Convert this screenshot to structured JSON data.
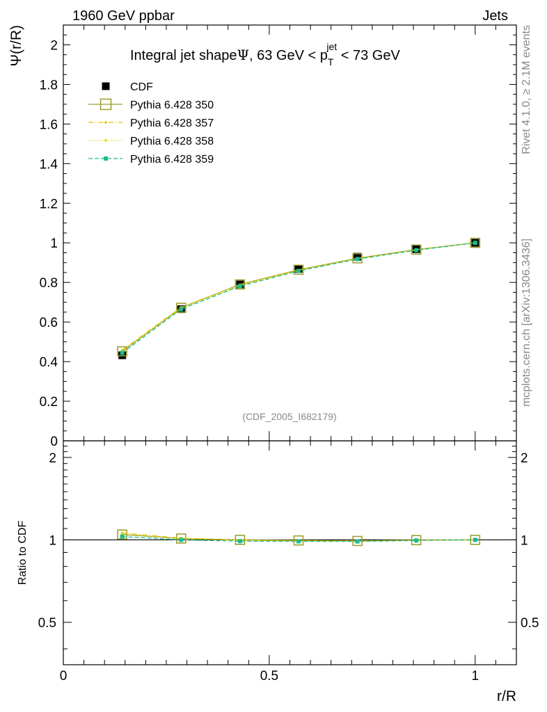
{
  "header": {
    "left_label": "1960 GeV ppbar",
    "right_label": "Jets"
  },
  "side_labels": {
    "rivet": "Rivet 4.1.0, ≥ 2.1M events",
    "mcplots": "mcplots.cern.ch [arXiv:1306.3436]"
  },
  "watermark": "(CDF_2005_I682179)",
  "chart_data": [
    {
      "type": "line",
      "title_parts": {
        "prefix": "Integral jet shape",
        "psi": "Ψ",
        "mid": ", 63 GeV < p",
        "sub": "T",
        "sup": "jet",
        "suffix": " < 73 GeV"
      },
      "ylabel": "Ψ(r/R)",
      "xlim": [
        0,
        1.1
      ],
      "ylim": [
        0,
        2.1
      ],
      "y_ticks": [
        "0",
        "0.2",
        "0.4",
        "0.6",
        "0.8",
        "1",
        "1.2",
        "1.4",
        "1.6",
        "1.8",
        "2"
      ],
      "x": [
        0.143,
        0.286,
        0.429,
        0.571,
        0.714,
        0.857,
        1.0
      ],
      "series": [
        {
          "name": "CDF",
          "color": "#000000",
          "marker": "filled-square",
          "values": [
            0.432,
            0.665,
            0.79,
            0.868,
            0.93,
            0.968,
            1.0
          ]
        },
        {
          "name": "Pythia 6.428 350",
          "color": "#9a9a2a",
          "marker": "open-square",
          "dash": "solid",
          "values": [
            0.452,
            0.672,
            0.79,
            0.864,
            0.922,
            0.966,
            1.0
          ]
        },
        {
          "name": "Pythia 6.428 357",
          "color": "#e8c000",
          "marker": "small-dot",
          "dash": "dashdot",
          "values": [
            0.458,
            0.675,
            0.788,
            0.862,
            0.921,
            0.965,
            1.0
          ]
        },
        {
          "name": "Pythia 6.428 358",
          "color": "#d4d400",
          "marker": "small-dot",
          "dash": "dotted",
          "values": [
            0.454,
            0.672,
            0.786,
            0.861,
            0.92,
            0.965,
            1.0
          ]
        },
        {
          "name": "Pythia 6.428 359",
          "color": "#1abc8c",
          "marker": "filled-square-small",
          "dash": "dashed",
          "values": [
            0.444,
            0.665,
            0.781,
            0.858,
            0.918,
            0.963,
            1.0
          ]
        }
      ],
      "legend_position": "top-left"
    },
    {
      "type": "line",
      "ylabel": "Ratio to CDF",
      "xlabel": "r/R",
      "xlim": [
        0,
        1.1
      ],
      "ylim": [
        0.35,
        2.3
      ],
      "y_ticks": [
        "0.5",
        "1",
        "2"
      ],
      "x_ticks": [
        "0",
        "0.5",
        "1"
      ],
      "reference_line": 1.0,
      "x": [
        0.143,
        0.286,
        0.429,
        0.571,
        0.714,
        0.857,
        1.0
      ],
      "series": [
        {
          "name": "Pythia 6.428 350",
          "color": "#9a9a2a",
          "marker": "open-square",
          "dash": "solid",
          "values": [
            1.046,
            1.011,
            1.0,
            0.995,
            0.991,
            0.998,
            1.0
          ]
        },
        {
          "name": "Pythia 6.428 357",
          "color": "#e8c000",
          "marker": "small-dot",
          "dash": "dashdot",
          "values": [
            1.06,
            1.015,
            0.997,
            0.993,
            0.99,
            0.997,
            1.0
          ]
        },
        {
          "name": "Pythia 6.428 358",
          "color": "#d4d400",
          "marker": "small-dot",
          "dash": "dotted",
          "values": [
            1.051,
            1.011,
            0.995,
            0.992,
            0.989,
            0.997,
            1.0
          ]
        },
        {
          "name": "Pythia 6.428 359",
          "color": "#1abc8c",
          "marker": "filled-square-small",
          "dash": "dashed",
          "values": [
            1.028,
            1.0,
            0.989,
            0.988,
            0.987,
            0.995,
            1.0
          ]
        }
      ]
    }
  ]
}
